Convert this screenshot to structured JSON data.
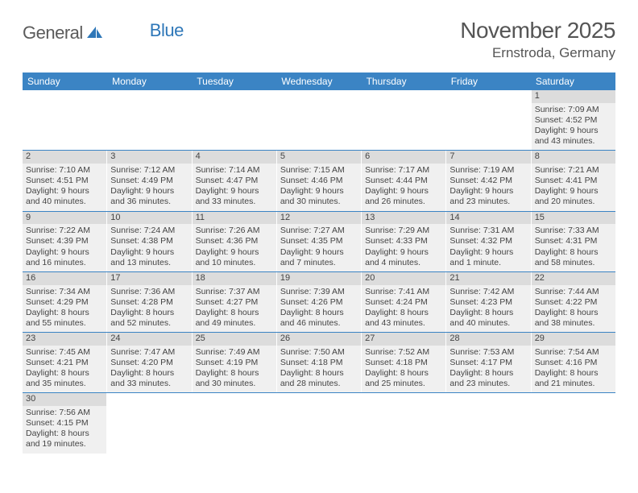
{
  "logo": {
    "text1": "General",
    "text2": "Blue"
  },
  "title": "November 2025",
  "location": "Ernstroda, Germany",
  "weekdays": [
    "Sunday",
    "Monday",
    "Tuesday",
    "Wednesday",
    "Thursday",
    "Friday",
    "Saturday"
  ],
  "colors": {
    "header_bg": "#3b84c4",
    "header_text": "#ffffff",
    "cell_bg": "#f0f0f0",
    "daynum_bg": "#dcdcdc",
    "row_border": "#3b84c4",
    "text": "#444444",
    "logo_gray": "#5b5b5b",
    "logo_blue": "#2e77b8"
  },
  "layout": {
    "columns": 7,
    "rows": 6,
    "font_size_cell": 10.5,
    "font_size_head": 12,
    "font_size_title": 28,
    "font_size_location": 17
  },
  "grid": [
    [
      null,
      null,
      null,
      null,
      null,
      null,
      {
        "n": "1",
        "sr": "Sunrise: 7:09 AM",
        "ss": "Sunset: 4:52 PM",
        "d1": "Daylight: 9 hours",
        "d2": "and 43 minutes."
      }
    ],
    [
      {
        "n": "2",
        "sr": "Sunrise: 7:10 AM",
        "ss": "Sunset: 4:51 PM",
        "d1": "Daylight: 9 hours",
        "d2": "and 40 minutes."
      },
      {
        "n": "3",
        "sr": "Sunrise: 7:12 AM",
        "ss": "Sunset: 4:49 PM",
        "d1": "Daylight: 9 hours",
        "d2": "and 36 minutes."
      },
      {
        "n": "4",
        "sr": "Sunrise: 7:14 AM",
        "ss": "Sunset: 4:47 PM",
        "d1": "Daylight: 9 hours",
        "d2": "and 33 minutes."
      },
      {
        "n": "5",
        "sr": "Sunrise: 7:15 AM",
        "ss": "Sunset: 4:46 PM",
        "d1": "Daylight: 9 hours",
        "d2": "and 30 minutes."
      },
      {
        "n": "6",
        "sr": "Sunrise: 7:17 AM",
        "ss": "Sunset: 4:44 PM",
        "d1": "Daylight: 9 hours",
        "d2": "and 26 minutes."
      },
      {
        "n": "7",
        "sr": "Sunrise: 7:19 AM",
        "ss": "Sunset: 4:42 PM",
        "d1": "Daylight: 9 hours",
        "d2": "and 23 minutes."
      },
      {
        "n": "8",
        "sr": "Sunrise: 7:21 AM",
        "ss": "Sunset: 4:41 PM",
        "d1": "Daylight: 9 hours",
        "d2": "and 20 minutes."
      }
    ],
    [
      {
        "n": "9",
        "sr": "Sunrise: 7:22 AM",
        "ss": "Sunset: 4:39 PM",
        "d1": "Daylight: 9 hours",
        "d2": "and 16 minutes."
      },
      {
        "n": "10",
        "sr": "Sunrise: 7:24 AM",
        "ss": "Sunset: 4:38 PM",
        "d1": "Daylight: 9 hours",
        "d2": "and 13 minutes."
      },
      {
        "n": "11",
        "sr": "Sunrise: 7:26 AM",
        "ss": "Sunset: 4:36 PM",
        "d1": "Daylight: 9 hours",
        "d2": "and 10 minutes."
      },
      {
        "n": "12",
        "sr": "Sunrise: 7:27 AM",
        "ss": "Sunset: 4:35 PM",
        "d1": "Daylight: 9 hours",
        "d2": "and 7 minutes."
      },
      {
        "n": "13",
        "sr": "Sunrise: 7:29 AM",
        "ss": "Sunset: 4:33 PM",
        "d1": "Daylight: 9 hours",
        "d2": "and 4 minutes."
      },
      {
        "n": "14",
        "sr": "Sunrise: 7:31 AM",
        "ss": "Sunset: 4:32 PM",
        "d1": "Daylight: 9 hours",
        "d2": "and 1 minute."
      },
      {
        "n": "15",
        "sr": "Sunrise: 7:33 AM",
        "ss": "Sunset: 4:31 PM",
        "d1": "Daylight: 8 hours",
        "d2": "and 58 minutes."
      }
    ],
    [
      {
        "n": "16",
        "sr": "Sunrise: 7:34 AM",
        "ss": "Sunset: 4:29 PM",
        "d1": "Daylight: 8 hours",
        "d2": "and 55 minutes."
      },
      {
        "n": "17",
        "sr": "Sunrise: 7:36 AM",
        "ss": "Sunset: 4:28 PM",
        "d1": "Daylight: 8 hours",
        "d2": "and 52 minutes."
      },
      {
        "n": "18",
        "sr": "Sunrise: 7:37 AM",
        "ss": "Sunset: 4:27 PM",
        "d1": "Daylight: 8 hours",
        "d2": "and 49 minutes."
      },
      {
        "n": "19",
        "sr": "Sunrise: 7:39 AM",
        "ss": "Sunset: 4:26 PM",
        "d1": "Daylight: 8 hours",
        "d2": "and 46 minutes."
      },
      {
        "n": "20",
        "sr": "Sunrise: 7:41 AM",
        "ss": "Sunset: 4:24 PM",
        "d1": "Daylight: 8 hours",
        "d2": "and 43 minutes."
      },
      {
        "n": "21",
        "sr": "Sunrise: 7:42 AM",
        "ss": "Sunset: 4:23 PM",
        "d1": "Daylight: 8 hours",
        "d2": "and 40 minutes."
      },
      {
        "n": "22",
        "sr": "Sunrise: 7:44 AM",
        "ss": "Sunset: 4:22 PM",
        "d1": "Daylight: 8 hours",
        "d2": "and 38 minutes."
      }
    ],
    [
      {
        "n": "23",
        "sr": "Sunrise: 7:45 AM",
        "ss": "Sunset: 4:21 PM",
        "d1": "Daylight: 8 hours",
        "d2": "and 35 minutes."
      },
      {
        "n": "24",
        "sr": "Sunrise: 7:47 AM",
        "ss": "Sunset: 4:20 PM",
        "d1": "Daylight: 8 hours",
        "d2": "and 33 minutes."
      },
      {
        "n": "25",
        "sr": "Sunrise: 7:49 AM",
        "ss": "Sunset: 4:19 PM",
        "d1": "Daylight: 8 hours",
        "d2": "and 30 minutes."
      },
      {
        "n": "26",
        "sr": "Sunrise: 7:50 AM",
        "ss": "Sunset: 4:18 PM",
        "d1": "Daylight: 8 hours",
        "d2": "and 28 minutes."
      },
      {
        "n": "27",
        "sr": "Sunrise: 7:52 AM",
        "ss": "Sunset: 4:18 PM",
        "d1": "Daylight: 8 hours",
        "d2": "and 25 minutes."
      },
      {
        "n": "28",
        "sr": "Sunrise: 7:53 AM",
        "ss": "Sunset: 4:17 PM",
        "d1": "Daylight: 8 hours",
        "d2": "and 23 minutes."
      },
      {
        "n": "29",
        "sr": "Sunrise: 7:54 AM",
        "ss": "Sunset: 4:16 PM",
        "d1": "Daylight: 8 hours",
        "d2": "and 21 minutes."
      }
    ],
    [
      {
        "n": "30",
        "sr": "Sunrise: 7:56 AM",
        "ss": "Sunset: 4:15 PM",
        "d1": "Daylight: 8 hours",
        "d2": "and 19 minutes."
      },
      null,
      null,
      null,
      null,
      null,
      null
    ]
  ]
}
